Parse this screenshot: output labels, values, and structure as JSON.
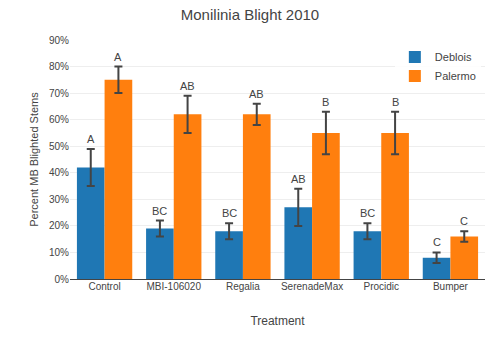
{
  "chart_data": {
    "type": "bar",
    "title": "Monilinia Blight 2010",
    "xlabel": "Treatment",
    "ylabel": "Percent MB Blighted Stems",
    "categories": [
      "Control",
      "MBI-106020",
      "Regalia",
      "SerenadeMax",
      "Procidic",
      "Bumper"
    ],
    "series": [
      {
        "name": "Deblois",
        "values": [
          42,
          19,
          18,
          27,
          18,
          8
        ],
        "errors": [
          7,
          3,
          3,
          7,
          3,
          2
        ],
        "labels": [
          "A",
          "BC",
          "BC",
          "AB",
          "BC",
          "C"
        ]
      },
      {
        "name": "Palermo",
        "values": [
          75,
          62,
          62,
          55,
          55,
          16
        ],
        "errors": [
          5,
          7,
          4,
          8,
          8,
          2
        ],
        "labels": [
          "A",
          "AB",
          "AB",
          "B",
          "B",
          "C"
        ]
      }
    ],
    "ylim": [
      0,
      90
    ],
    "yticks": [
      {
        "value": 0,
        "label": "0%"
      },
      {
        "value": 10,
        "label": "10%"
      },
      {
        "value": 20,
        "label": "20%"
      },
      {
        "value": 30,
        "label": "30%"
      },
      {
        "value": 40,
        "label": "40%"
      },
      {
        "value": 50,
        "label": "50%"
      },
      {
        "value": 60,
        "label": "60%"
      },
      {
        "value": 70,
        "label": "70%"
      },
      {
        "value": 80,
        "label": "80%"
      },
      {
        "value": 90,
        "label": "90%"
      }
    ],
    "grid": true,
    "legend": "upper right"
  }
}
